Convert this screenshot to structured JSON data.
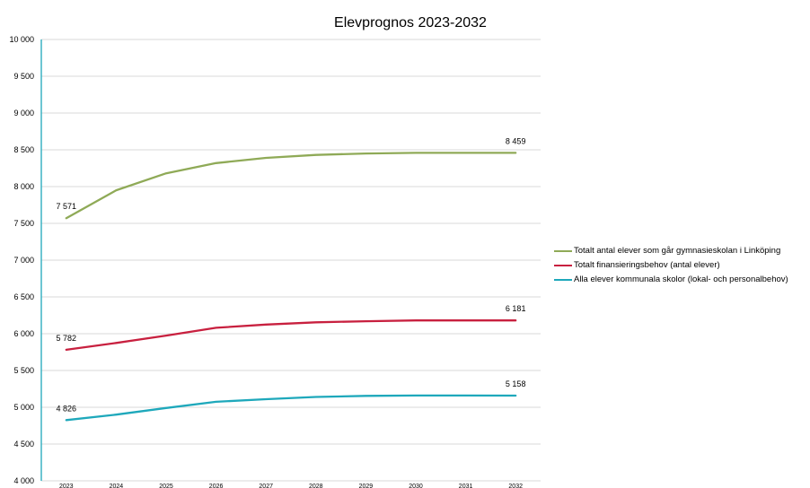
{
  "chart_data": {
    "type": "line",
    "title": "Elevprognos 2023-2032",
    "xlabel": "",
    "ylabel": "",
    "x": [
      "2023",
      "2024",
      "2025",
      "2026",
      "2027",
      "2028",
      "2029",
      "2030",
      "2031",
      "2032"
    ],
    "ylim": [
      4000,
      10000
    ],
    "yticks": [
      4000,
      4500,
      5000,
      5500,
      6000,
      6500,
      7000,
      7500,
      8000,
      8500,
      9000,
      9500,
      10000
    ],
    "ytick_labels": [
      "4 000",
      "4 500",
      "5 000",
      "5 500",
      "6 000",
      "6 500",
      "7 000",
      "7 500",
      "8 000",
      "8 500",
      "9 000",
      "9 500",
      "10 000"
    ],
    "grid": true,
    "legend_position": "right",
    "series": [
      {
        "name": "Totalt antal elever som går gymnasieskolan i Linköping",
        "color": "#8faa57",
        "values": [
          7571,
          7950,
          8180,
          8320,
          8390,
          8430,
          8450,
          8459,
          8459,
          8459
        ],
        "labels": [
          {
            "index": 0,
            "text": "7 571"
          },
          {
            "index": 9,
            "text": "8 459"
          }
        ]
      },
      {
        "name": "Totalt finansieringsbehov (antal elever)",
        "color": "#c8203f",
        "values": [
          5782,
          5875,
          5975,
          6080,
          6125,
          6155,
          6170,
          6181,
          6181,
          6181
        ],
        "labels": [
          {
            "index": 0,
            "text": "5 782"
          },
          {
            "index": 9,
            "text": "6 181"
          }
        ]
      },
      {
        "name": "Alla elever kommunala skolor (lokal- och personalbehov)",
        "color": "#1ea8bb",
        "values": [
          4826,
          4900,
          4990,
          5075,
          5110,
          5140,
          5155,
          5160,
          5160,
          5158
        ],
        "labels": [
          {
            "index": 0,
            "text": "4 826"
          },
          {
            "index": 9,
            "text": "5 158"
          }
        ]
      }
    ]
  }
}
